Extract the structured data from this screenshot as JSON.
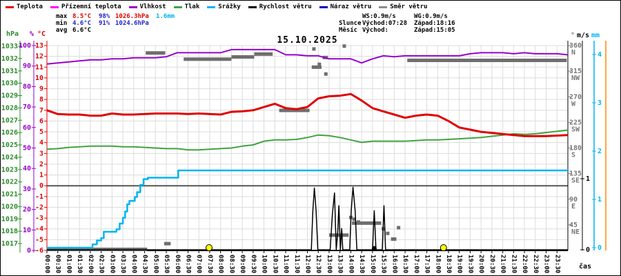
{
  "legend": {
    "items": [
      {
        "label": "Teplota",
        "color": "#e00000"
      },
      {
        "label": "Přízemní teplota",
        "color": "#ff00ff"
      },
      {
        "label": "Vlhkost",
        "color": "#9900cc"
      },
      {
        "label": "Tlak",
        "color": "#3fa33f"
      },
      {
        "label": "Srážky",
        "color": "#00b4f0"
      },
      {
        "label": "Rychlost větru",
        "color": "#000000"
      },
      {
        "label": "Náraz větru",
        "color": "#0000bb"
      },
      {
        "label": "Směr větru",
        "color": "#8c8c8c"
      }
    ]
  },
  "stats_left": {
    "rows": [
      {
        "cells": [
          {
            "t": "max",
            "c": "#000000"
          },
          {
            "t": "8.5°C",
            "c": "#dd0000"
          },
          {
            "t": "98%",
            "c": "#2222cc"
          },
          {
            "t": "1026.3hPa",
            "c": "#dd0000"
          },
          {
            "t": "1.6mm",
            "c": "#00b4f0"
          }
        ]
      },
      {
        "cells": [
          {
            "t": "min",
            "c": "#000000"
          },
          {
            "t": "4.6°C",
            "c": "#2222cc"
          },
          {
            "t": "91%",
            "c": "#2222cc"
          },
          {
            "t": "1024.6hPa",
            "c": "#2222cc"
          },
          {
            "t": "",
            "c": "#000000"
          }
        ]
      },
      {
        "cells": [
          {
            "t": "avg",
            "c": "#000000"
          },
          {
            "t": "6.6°C",
            "c": "#000000"
          },
          {
            "t": "",
            "c": "#000000"
          },
          {
            "t": "",
            "c": "#000000"
          },
          {
            "t": "",
            "c": "#000000"
          }
        ]
      }
    ]
  },
  "stats_right": {
    "rows": [
      {
        "cells": [
          "",
          "WS:0.9m/s",
          "WG:0.9m/s"
        ]
      },
      {
        "cells": [
          "Slunce",
          "Východ:07:28",
          "Západ:18:16"
        ]
      },
      {
        "cells": [
          "Měsíc",
          "Východ:",
          "Západ:15:05"
        ]
      }
    ]
  },
  "axes": {
    "hpa": {
      "title": "hPa",
      "color": "#2e8b2e",
      "labels": [
        1033,
        1032,
        1031,
        1030,
        1029,
        1028,
        1027,
        1026,
        1025,
        1024,
        1023,
        1022,
        1021,
        1020,
        1019,
        1018,
        1017
      ]
    },
    "humidity": {
      "title": "%",
      "color": "#9900cc",
      "labels": [
        100,
        90,
        80,
        70,
        60,
        50,
        40,
        30,
        20,
        10,
        0
      ]
    },
    "temp": {
      "title": "°C",
      "color": "#dd0000",
      "labels": [
        13,
        12,
        11,
        10,
        9,
        8,
        7,
        6,
        5,
        4,
        3,
        2,
        1,
        0,
        -1,
        -2,
        -3,
        -4,
        -5,
        -6
      ]
    },
    "dir": {
      "title": "°",
      "color": "#777777",
      "labels": [
        {
          "deg": 360,
          "txt": "N"
        },
        {
          "deg": 315,
          "txt": "NW"
        },
        {
          "deg": 270,
          "txt": "W"
        },
        {
          "deg": 225,
          "txt": "SW"
        },
        {
          "deg": 180,
          "txt": "S"
        },
        {
          "deg": 135,
          "txt": "SE"
        },
        {
          "deg": 90,
          "txt": "E"
        },
        {
          "deg": 45,
          "txt": "NE"
        }
      ]
    },
    "ms": {
      "title": "m/s",
      "color": "#000000",
      "labels": [
        1,
        0
      ]
    },
    "mm": {
      "title": "mm",
      "color": "#00b4f0",
      "labels": [
        4,
        3,
        2,
        1,
        0
      ]
    },
    "x": {
      "title": "čas",
      "labels": [
        "00:00",
        "00:30",
        "01:00",
        "01:30",
        "02:00",
        "02:30",
        "03:00",
        "03:30",
        "04:00",
        "04:30",
        "05:00",
        "05:30",
        "06:00",
        "06:30",
        "07:00",
        "07:30",
        "08:00",
        "08:30",
        "09:00",
        "09:30",
        "10:00",
        "10:30",
        "11:00",
        "11:30",
        "12:00",
        "12:30",
        "13:00",
        "13:30",
        "14:00",
        "14:30",
        "15:00",
        "15:30",
        "16:00",
        "16:30",
        "17:00",
        "17:30",
        "18:00",
        "18:30",
        "19:00",
        "19:30",
        "20:00",
        "20:30",
        "21:00",
        "21:30",
        "22:00",
        "22:30",
        "23:00",
        "23:30"
      ]
    }
  },
  "chart_data": {
    "type": "line",
    "title": "15.10.2025",
    "x_start_hour": 0,
    "x_step_hours": 0.5,
    "axis_ranges": {
      "time_h": [
        0,
        24
      ],
      "temp_c": [
        -6,
        13
      ],
      "humidity_pct": [
        0,
        100
      ],
      "pressure_hpa": [
        1017,
        1033
      ],
      "wind_dir_deg": [
        0,
        360
      ],
      "wind_ms": [
        0,
        2.9
      ],
      "precip_mm": [
        0,
        4.2
      ]
    },
    "series": {
      "temperature_c": [
        7.0,
        6.65,
        6.6,
        6.6,
        6.5,
        6.5,
        6.7,
        6.6,
        6.6,
        6.65,
        6.7,
        6.7,
        6.7,
        6.65,
        6.7,
        6.65,
        6.6,
        6.85,
        6.9,
        7.0,
        7.3,
        7.6,
        7.2,
        7.1,
        7.3,
        8.1,
        8.3,
        8.35,
        8.5,
        7.9,
        7.2,
        6.9,
        6.6,
        6.3,
        6.5,
        6.6,
        6.5,
        6.0,
        5.4,
        5.2,
        5.0,
        4.9,
        4.8,
        4.7,
        4.6,
        4.6,
        4.6,
        4.65,
        4.7
      ],
      "humidity_pct": [
        91,
        91.5,
        92,
        92.5,
        93,
        93,
        93.5,
        93.5,
        94,
        94,
        94,
        94.5,
        96.5,
        96.5,
        96.5,
        96.5,
        96.5,
        98,
        98,
        98,
        98,
        98,
        95.5,
        95.5,
        95,
        95,
        93.5,
        93.5,
        93.5,
        91.5,
        93.5,
        95,
        94.5,
        95,
        95,
        95,
        95,
        95,
        95,
        96,
        96.5,
        96.5,
        96.5,
        96,
        96.5,
        96,
        96,
        96,
        95.5
      ],
      "pressure_hpa": [
        1024.65,
        1024.7,
        1024.8,
        1024.85,
        1024.9,
        1024.9,
        1024.9,
        1024.85,
        1024.85,
        1024.8,
        1024.75,
        1024.7,
        1024.7,
        1024.6,
        1024.6,
        1024.65,
        1024.7,
        1024.75,
        1024.9,
        1025.0,
        1025.3,
        1025.4,
        1025.4,
        1025.45,
        1025.6,
        1025.8,
        1025.75,
        1025.6,
        1025.4,
        1025.2,
        1025.3,
        1025.3,
        1025.3,
        1025.3,
        1025.35,
        1025.4,
        1025.4,
        1025.45,
        1025.5,
        1025.55,
        1025.6,
        1025.7,
        1025.8,
        1025.9,
        1025.85,
        1025.9,
        1026.0,
        1026.1,
        1026.2
      ],
      "precip_cum_mm": [
        [
          0,
          0
        ],
        [
          2.05,
          0
        ],
        [
          2.1,
          0.07
        ],
        [
          2.3,
          0.15
        ],
        [
          2.5,
          0.2
        ],
        [
          2.62,
          0.33
        ],
        [
          3.2,
          0.38
        ],
        [
          3.35,
          0.5
        ],
        [
          3.5,
          0.62
        ],
        [
          3.6,
          0.75
        ],
        [
          3.7,
          0.9
        ],
        [
          3.8,
          0.97
        ],
        [
          4.05,
          1.05
        ],
        [
          4.15,
          1.15
        ],
        [
          4.3,
          1.3
        ],
        [
          4.45,
          1.42
        ],
        [
          4.65,
          1.45
        ],
        [
          5.95,
          1.45
        ],
        [
          6.05,
          1.6
        ],
        [
          24,
          1.6
        ]
      ],
      "wind_speed_ms": [
        [
          0,
          0
        ],
        [
          12.18,
          0
        ],
        [
          12.25,
          0.55
        ],
        [
          12.32,
          0.87
        ],
        [
          12.4,
          0.55
        ],
        [
          12.48,
          0
        ],
        [
          13.05,
          0
        ],
        [
          13.15,
          0.5
        ],
        [
          13.25,
          0.8
        ],
        [
          13.33,
          0
        ],
        [
          13.4,
          0.25
        ],
        [
          13.45,
          0.62
        ],
        [
          13.52,
          0
        ],
        [
          13.58,
          0.3
        ],
        [
          13.63,
          0
        ],
        [
          13.95,
          0
        ],
        [
          14.02,
          0.55
        ],
        [
          14.1,
          0.88
        ],
        [
          14.2,
          0.55
        ],
        [
          14.28,
          0
        ],
        [
          15.0,
          0
        ],
        [
          15.08,
          0.55
        ],
        [
          15.16,
          0
        ],
        [
          15.45,
          0
        ],
        [
          15.53,
          0.62
        ],
        [
          15.6,
          0
        ],
        [
          24,
          0
        ]
      ],
      "wind_dir_segments_deg": [
        [
          0,
          4.62,
          2
        ],
        [
          4.55,
          5.45,
          347
        ],
        [
          5.4,
          5.7,
          12
        ],
        [
          6.3,
          8.5,
          336
        ],
        [
          8.5,
          9.55,
          340
        ],
        [
          9.55,
          10.4,
          345
        ],
        [
          10.7,
          12.1,
          246
        ],
        [
          12.2,
          12.65,
          322
        ],
        [
          12.7,
          12.95,
          339
        ],
        [
          13.0,
          13.9,
          27
        ],
        [
          14.05,
          15.4,
          48
        ],
        [
          15.85,
          16.1,
          20
        ],
        [
          16.6,
          23.95,
          334
        ]
      ],
      "wind_dir_points_deg": [
        [
          12.3,
          354
        ],
        [
          12.55,
          327
        ],
        [
          12.85,
          310
        ],
        [
          13.7,
          359
        ],
        [
          14.0,
          58
        ],
        [
          14.15,
          55
        ],
        [
          14.35,
          50
        ],
        [
          15.5,
          38
        ],
        [
          15.7,
          30
        ],
        [
          16.2,
          40
        ]
      ]
    },
    "reference_line_c": 0,
    "markers": {
      "sunrise_h": 7.47,
      "sunset_h": 18.27,
      "moonset_h": 15.08
    }
  },
  "colors": {
    "temperature": "#e00000",
    "ground_temperature": "#ff00ff",
    "humidity": "#9900cc",
    "pressure": "#3fa33f",
    "precipitation": "#00b4f0",
    "wind_speed": "#000000",
    "wind_gust": "#0000bb",
    "wind_direction": "#6e6e6e",
    "grid": "#dcdcdc",
    "reference": "#555555",
    "sun_marker": "#ffff00",
    "moon_marker": "#000000",
    "right_extra_axis": "#ff8800"
  }
}
